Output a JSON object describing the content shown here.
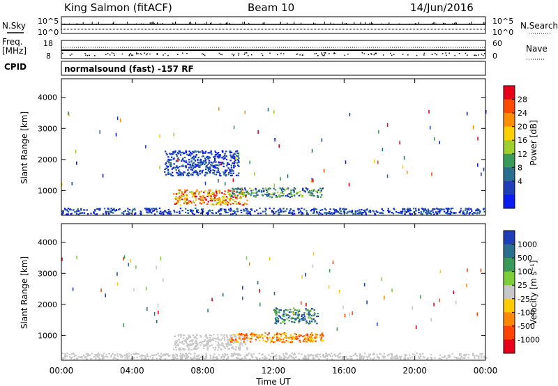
{
  "header": {
    "station": "King Salmon (fitACF)",
    "beam": "Beam 10",
    "date": "14/Jun/2016"
  },
  "top_panels": {
    "nsky_label": "N.Sky",
    "nsearch_label": "N.Search",
    "noise_tick_hi": "10^5",
    "noise_tick_lo": "10^0",
    "freq_label_line1": "Freq.",
    "freq_label_line2": "[MHz]",
    "freq_ticks": [
      "18",
      "8"
    ],
    "nave_label": "Nave",
    "nave_ticks": [
      "60",
      "0"
    ],
    "cpid_label": "CPID",
    "cpid_text": "normalsound (fast) -157 RF"
  },
  "chart_data": [
    {
      "type": "heatmap",
      "name": "power",
      "ylabel": "Slant Range [km]",
      "ylim": [
        200,
        4600
      ],
      "y_ticks": [
        "4000",
        "3000",
        "2000",
        "1000"
      ],
      "x_ticks": [
        "00:00",
        "04:00",
        "08:00",
        "12:00",
        "16:00",
        "20:00",
        "00:00"
      ],
      "xlim_hours": [
        0,
        24
      ],
      "colorbar": {
        "label": "Power [dB]",
        "ticks": [
          "28",
          "24",
          "20",
          "16",
          "12",
          "8",
          "4"
        ],
        "colors": [
          "#e6001a",
          "#ff4a00",
          "#ff8f00",
          "#ffd000",
          "#9fcf2d",
          "#3a9a58",
          "#2a6f8f",
          "#1f3fb8",
          "#0a1cf0"
        ]
      },
      "echo_regions": [
        {
          "t": [
            0.0,
            24.0
          ],
          "r": [
            250,
            450
          ],
          "level": "low"
        },
        {
          "t": [
            6.3,
            10.5
          ],
          "r": [
            550,
            1050
          ],
          "level": "high"
        },
        {
          "t": [
            9.5,
            14.8
          ],
          "r": [
            800,
            1100
          ],
          "level": "medium"
        },
        {
          "t": [
            5.8,
            10.0
          ],
          "r": [
            1500,
            2300
          ],
          "level": "low"
        }
      ]
    },
    {
      "type": "heatmap",
      "name": "velocity",
      "ylabel": "Slant Range [km]",
      "ylim": [
        200,
        4600
      ],
      "y_ticks": [
        "4000",
        "3000",
        "2000",
        "1000"
      ],
      "x_ticks": [
        "00:00",
        "04:00",
        "08:00",
        "12:00",
        "16:00",
        "20:00",
        "00:00"
      ],
      "xlabel": "Time UT",
      "xlim_hours": [
        0,
        24
      ],
      "colorbar": {
        "label": "Velocity [m s⁻¹]",
        "ticks": [
          "1000",
          "500",
          "100",
          "25",
          "-25",
          "-100",
          "-500",
          "-1000"
        ],
        "colors": [
          "#1f3fb8",
          "#2a6f8f",
          "#3a9a58",
          "#7ccf3a",
          "#c8c8c8",
          "#ffcc00",
          "#ff8800",
          "#ff4400",
          "#e6001a"
        ]
      },
      "echo_regions": [
        {
          "t": [
            0.0,
            24.0
          ],
          "r": [
            250,
            450
          ],
          "level": "ground-scatter"
        },
        {
          "t": [
            6.3,
            10.5
          ],
          "r": [
            550,
            1050
          ],
          "level": "ground-scatter"
        },
        {
          "t": [
            9.5,
            14.8
          ],
          "r": [
            800,
            1100
          ],
          "level": "negative"
        },
        {
          "t": [
            12.0,
            14.5
          ],
          "r": [
            1400,
            1900
          ],
          "level": "positive"
        }
      ]
    }
  ]
}
